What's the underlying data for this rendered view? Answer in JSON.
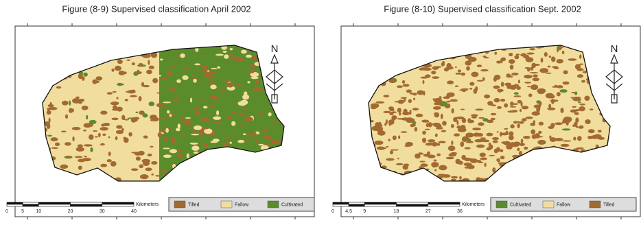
{
  "maps": [
    {
      "title": "Figure (8-9) Supervised classification April 2002",
      "north": "N",
      "scale": {
        "ticks": [
          "0",
          "5",
          "10",
          "20",
          "30",
          "40"
        ],
        "unit": "Kilometers"
      },
      "legend": [
        {
          "label": "Tilled",
          "color": "#a26a30"
        },
        {
          "label": "Fallow",
          "color": "#f1de9e"
        },
        {
          "label": "Cultivated",
          "color": "#5b8c2c"
        }
      ]
    },
    {
      "title": "Figure (8-10) Supervised classification Sept. 2002",
      "north": "N",
      "scale": {
        "ticks": [
          "0",
          "4.5",
          "9",
          "18",
          "27",
          "36"
        ],
        "unit": "Kilometers"
      },
      "legend": [
        {
          "label": "Cultivated",
          "color": "#5b8c2c"
        },
        {
          "label": "Fallow",
          "color": "#f1de9e"
        },
        {
          "label": "Tilled",
          "color": "#a26a30"
        }
      ]
    }
  ]
}
